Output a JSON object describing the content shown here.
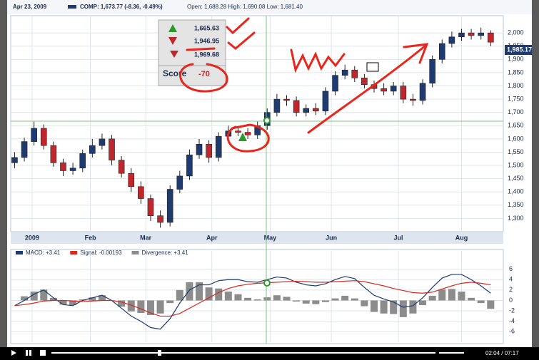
{
  "header": {
    "date": "Apr 23, 2009",
    "quote": "COMP: 1,673.77 (-8.36, -0.49%)",
    "ohlc": "Open: 1,688.28  High: 1,690.08  Low: 1,681.40"
  },
  "score_box": {
    "rows": [
      "1,665.63",
      "1,946.95",
      "1,969.68"
    ],
    "score_label": "Score",
    "score": "-70"
  },
  "price_tag": "1,985.17",
  "player": {
    "time": "02:04 / 07:17"
  },
  "chart_data": [
    {
      "type": "candlestick",
      "up_color": "#1f3a6e",
      "down_color": "#c0272d",
      "grid": true,
      "xlim": [
        -0.4,
        50.3
      ],
      "ylim": [
        1250,
        2065
      ],
      "xticks": [
        {
          "value": 1.8,
          "label": "2009"
        },
        {
          "value": 7.8,
          "label": "Feb"
        },
        {
          "value": 13.5,
          "label": "Mar"
        },
        {
          "value": 20.3,
          "label": "Apr"
        },
        {
          "value": 26.3,
          "label": "May"
        },
        {
          "value": 32.6,
          "label": "Jun"
        },
        {
          "value": 39.5,
          "label": "Jul"
        },
        {
          "value": 46,
          "label": "Aug"
        }
      ],
      "yticks": [
        {
          "value": 1300,
          "label": "1,300"
        },
        {
          "value": 1350,
          "label": "1,350"
        },
        {
          "value": 1400,
          "label": "1,400"
        },
        {
          "value": 1450,
          "label": "1,450"
        },
        {
          "value": 1500,
          "label": "1,500"
        },
        {
          "value": 1550,
          "label": "1,550"
        },
        {
          "value": 1600,
          "label": "1,600"
        },
        {
          "value": 1650,
          "label": "1,650"
        },
        {
          "value": 1700,
          "label": "1,700"
        },
        {
          "value": 1750,
          "label": "1,750"
        },
        {
          "value": 1800,
          "label": "1,800"
        },
        {
          "value": 1850,
          "label": "1,850"
        },
        {
          "value": 1900,
          "label": "1,900"
        },
        {
          "value": 1950,
          "label": "1,950"
        },
        {
          "value": 2000,
          "label": "2,000"
        }
      ],
      "open": [
        1510,
        1530,
        1590,
        1640,
        1575,
        1510,
        1480,
        1490,
        1545,
        1575,
        1600,
        1520,
        1470,
        1420,
        1375,
        1310,
        1285,
        1410,
        1460,
        1540,
        1580,
        1530,
        1610,
        1630,
        1625,
        1615,
        1650,
        1700,
        1750,
        1745,
        1700,
        1715,
        1705,
        1780,
        1840,
        1860,
        1830,
        1805,
        1790,
        1780,
        1800,
        1750,
        1745,
        1810,
        1900,
        1960,
        1985,
        2000,
        1990,
        2000
      ],
      "high": [
        1550,
        1605,
        1665,
        1655,
        1590,
        1525,
        1510,
        1560,
        1600,
        1620,
        1615,
        1535,
        1490,
        1440,
        1390,
        1330,
        1425,
        1480,
        1560,
        1600,
        1595,
        1625,
        1650,
        1645,
        1640,
        1665,
        1715,
        1770,
        1765,
        1760,
        1730,
        1735,
        1795,
        1855,
        1880,
        1875,
        1845,
        1820,
        1810,
        1815,
        1815,
        1770,
        1825,
        1915,
        1975,
        2005,
        2015,
        2015,
        2020,
        2010
      ],
      "low": [
        1490,
        1515,
        1575,
        1560,
        1495,
        1460,
        1465,
        1475,
        1530,
        1560,
        1500,
        1455,
        1400,
        1355,
        1290,
        1265,
        1270,
        1395,
        1445,
        1525,
        1510,
        1515,
        1595,
        1610,
        1600,
        1600,
        1635,
        1685,
        1725,
        1685,
        1685,
        1690,
        1690,
        1765,
        1825,
        1815,
        1790,
        1775,
        1765,
        1765,
        1735,
        1725,
        1730,
        1795,
        1885,
        1945,
        1970,
        1975,
        1975,
        1950
      ],
      "close": [
        1530,
        1590,
        1640,
        1575,
        1510,
        1480,
        1490,
        1545,
        1575,
        1600,
        1520,
        1470,
        1420,
        1375,
        1310,
        1285,
        1410,
        1460,
        1540,
        1580,
        1530,
        1610,
        1630,
        1625,
        1615,
        1650,
        1700,
        1750,
        1745,
        1700,
        1715,
        1705,
        1780,
        1840,
        1860,
        1830,
        1805,
        1790,
        1780,
        1800,
        1750,
        1745,
        1810,
        1900,
        1960,
        1985,
        2000,
        1990,
        2000,
        1965
      ]
    },
    {
      "type": "macd",
      "grid": true,
      "xlim": [
        -0.4,
        50.3
      ],
      "ylim": [
        -8,
        9.5
      ],
      "yticks": [
        6,
        4,
        2,
        0,
        -2,
        -4,
        -6
      ],
      "series": [
        {
          "name": "MACD: +3.41",
          "color": "#1f3a6e",
          "style": "line",
          "values": [
            -1,
            0,
            1.2,
            2,
            0.5,
            -0.8,
            -1,
            0,
            0.5,
            1,
            0,
            -1.5,
            -3,
            -4,
            -5.2,
            -5.5,
            -3.5,
            -0.5,
            2,
            3,
            3,
            3.8,
            4,
            4,
            3.6,
            3.5,
            4,
            4.5,
            4.3,
            3.5,
            3,
            2.8,
            3.2,
            4,
            4.6,
            4.2,
            2.5,
            1,
            0.3,
            -0.3,
            -1.3,
            -1,
            0.5,
            2.5,
            4.3,
            5,
            5,
            4,
            2.8,
            1.4
          ]
        },
        {
          "name": "Signal: -0.00193",
          "color": "#d42a20",
          "style": "line",
          "values": [
            -1,
            -0.8,
            -0.5,
            -0.1,
            0,
            0,
            -0.1,
            -0.2,
            -0.1,
            0,
            0,
            -0.3,
            -0.9,
            -1.6,
            -2.4,
            -3,
            -3,
            -2.5,
            -1.5,
            -0.5,
            0.5,
            1.5,
            2.3,
            2.8,
            3.1,
            3.3,
            3.4,
            3.5,
            3.6,
            3.7,
            3.6,
            3.5,
            3.5,
            3.6,
            3.7,
            3.8,
            3.6,
            3.2,
            2.8,
            2.3,
            1.9,
            1.5,
            1.4,
            1.6,
            2.2,
            2.8,
            3.3,
            3.5,
            3.3,
            3
          ]
        },
        {
          "name": "Divergence: +3.41",
          "color": "#8c8c8c",
          "style": "bar",
          "values": [
            0,
            0.8,
            1.7,
            2.1,
            0.5,
            -0.8,
            -0.9,
            0.2,
            0.6,
            1,
            0,
            -1.2,
            -2.1,
            -2.4,
            -2.8,
            -2.5,
            -0.5,
            2,
            3.5,
            3.5,
            2.5,
            2.3,
            1.7,
            1.2,
            0.5,
            0.2,
            0.6,
            1,
            0.7,
            -0.2,
            -0.6,
            -0.7,
            -0.3,
            0.4,
            0.9,
            0.4,
            -1.1,
            -2.2,
            -2.5,
            -2.6,
            -3.2,
            -2.5,
            -0.9,
            0.9,
            2.1,
            2.2,
            1.7,
            0.5,
            -0.5,
            -1.6
          ]
        }
      ]
    }
  ]
}
